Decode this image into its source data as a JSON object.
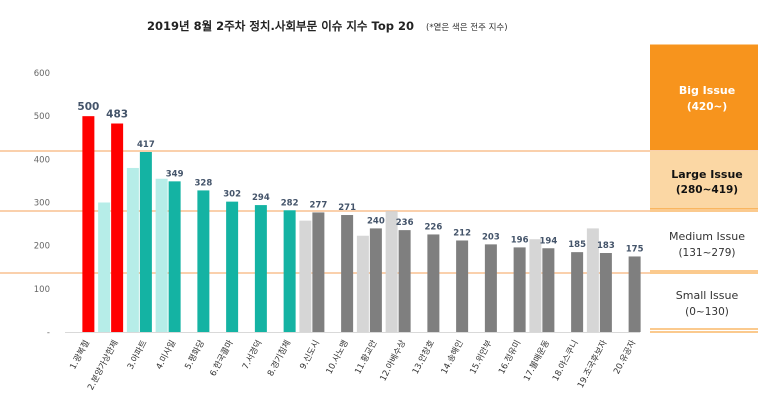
{
  "title": "2019년 8월 2주차 정치.사회부문 이슈 지수 Top 20",
  "title_note": "(*옅은 색은 전주 지수)",
  "colors": {
    "red": "#ff0000",
    "teal": "#14b3a3",
    "gray": "#7f7f7f",
    "prev_teal": "#b6ede8",
    "prev_gray": "#d6d6d6",
    "orange": "#f7941d",
    "orange_light": "#fbd7a4",
    "line_orange": "#f5a05a"
  },
  "chart_data": {
    "type": "bar",
    "ylim": [
      0,
      600
    ],
    "yticks": [
      "-",
      "100",
      "200",
      "300",
      "400",
      "500",
      "600"
    ],
    "categories": [
      "1.광복절",
      "2.분양가상한제",
      "3.아파트",
      "4.미사일",
      "5.평화당",
      "6.한국콜마",
      "7.서경덕",
      "8.경기침체",
      "9.신도시",
      "10.사노맹",
      "11.황교안",
      "12.아베수상",
      "13.안창호",
      "14.송해인",
      "15.위안부",
      "16.정유미",
      "17.불매운동",
      "18.야스쿠니",
      "19.조국후보자",
      "20.유공자"
    ],
    "series": [
      {
        "values": [
          500,
          483,
          417,
          349,
          328,
          302,
          294,
          282,
          277,
          271,
          240,
          236,
          226,
          212,
          203,
          196,
          194,
          185,
          183,
          175
        ],
        "colors": [
          "red",
          "red",
          "teal",
          "teal",
          "teal",
          "teal",
          "teal",
          "teal",
          "gray",
          "gray",
          "gray",
          "gray",
          "gray",
          "gray",
          "gray",
          "gray",
          "gray",
          "gray",
          "gray",
          "gray"
        ]
      },
      {
        "values": [
          null,
          300,
          380,
          355,
          null,
          null,
          null,
          null,
          258,
          null,
          223,
          280,
          null,
          null,
          null,
          null,
          215,
          null,
          240,
          null
        ],
        "colors": [
          null,
          "prev_teal",
          "prev_teal",
          "prev_teal",
          null,
          null,
          null,
          null,
          "prev_gray",
          null,
          "prev_gray",
          "prev_gray",
          null,
          null,
          null,
          null,
          "prev_gray",
          null,
          "prev_gray",
          null
        ]
      }
    ],
    "thresholds": [
      420,
      280,
      131
    ]
  },
  "bands": [
    {
      "title": "Big Issue",
      "range": "(420~)"
    },
    {
      "title": "Large Issue",
      "range": "(280~419)"
    },
    {
      "title": "Medium Issue",
      "range": "(131~279)"
    },
    {
      "title": "Small Issue",
      "range": "(0~130)"
    }
  ]
}
